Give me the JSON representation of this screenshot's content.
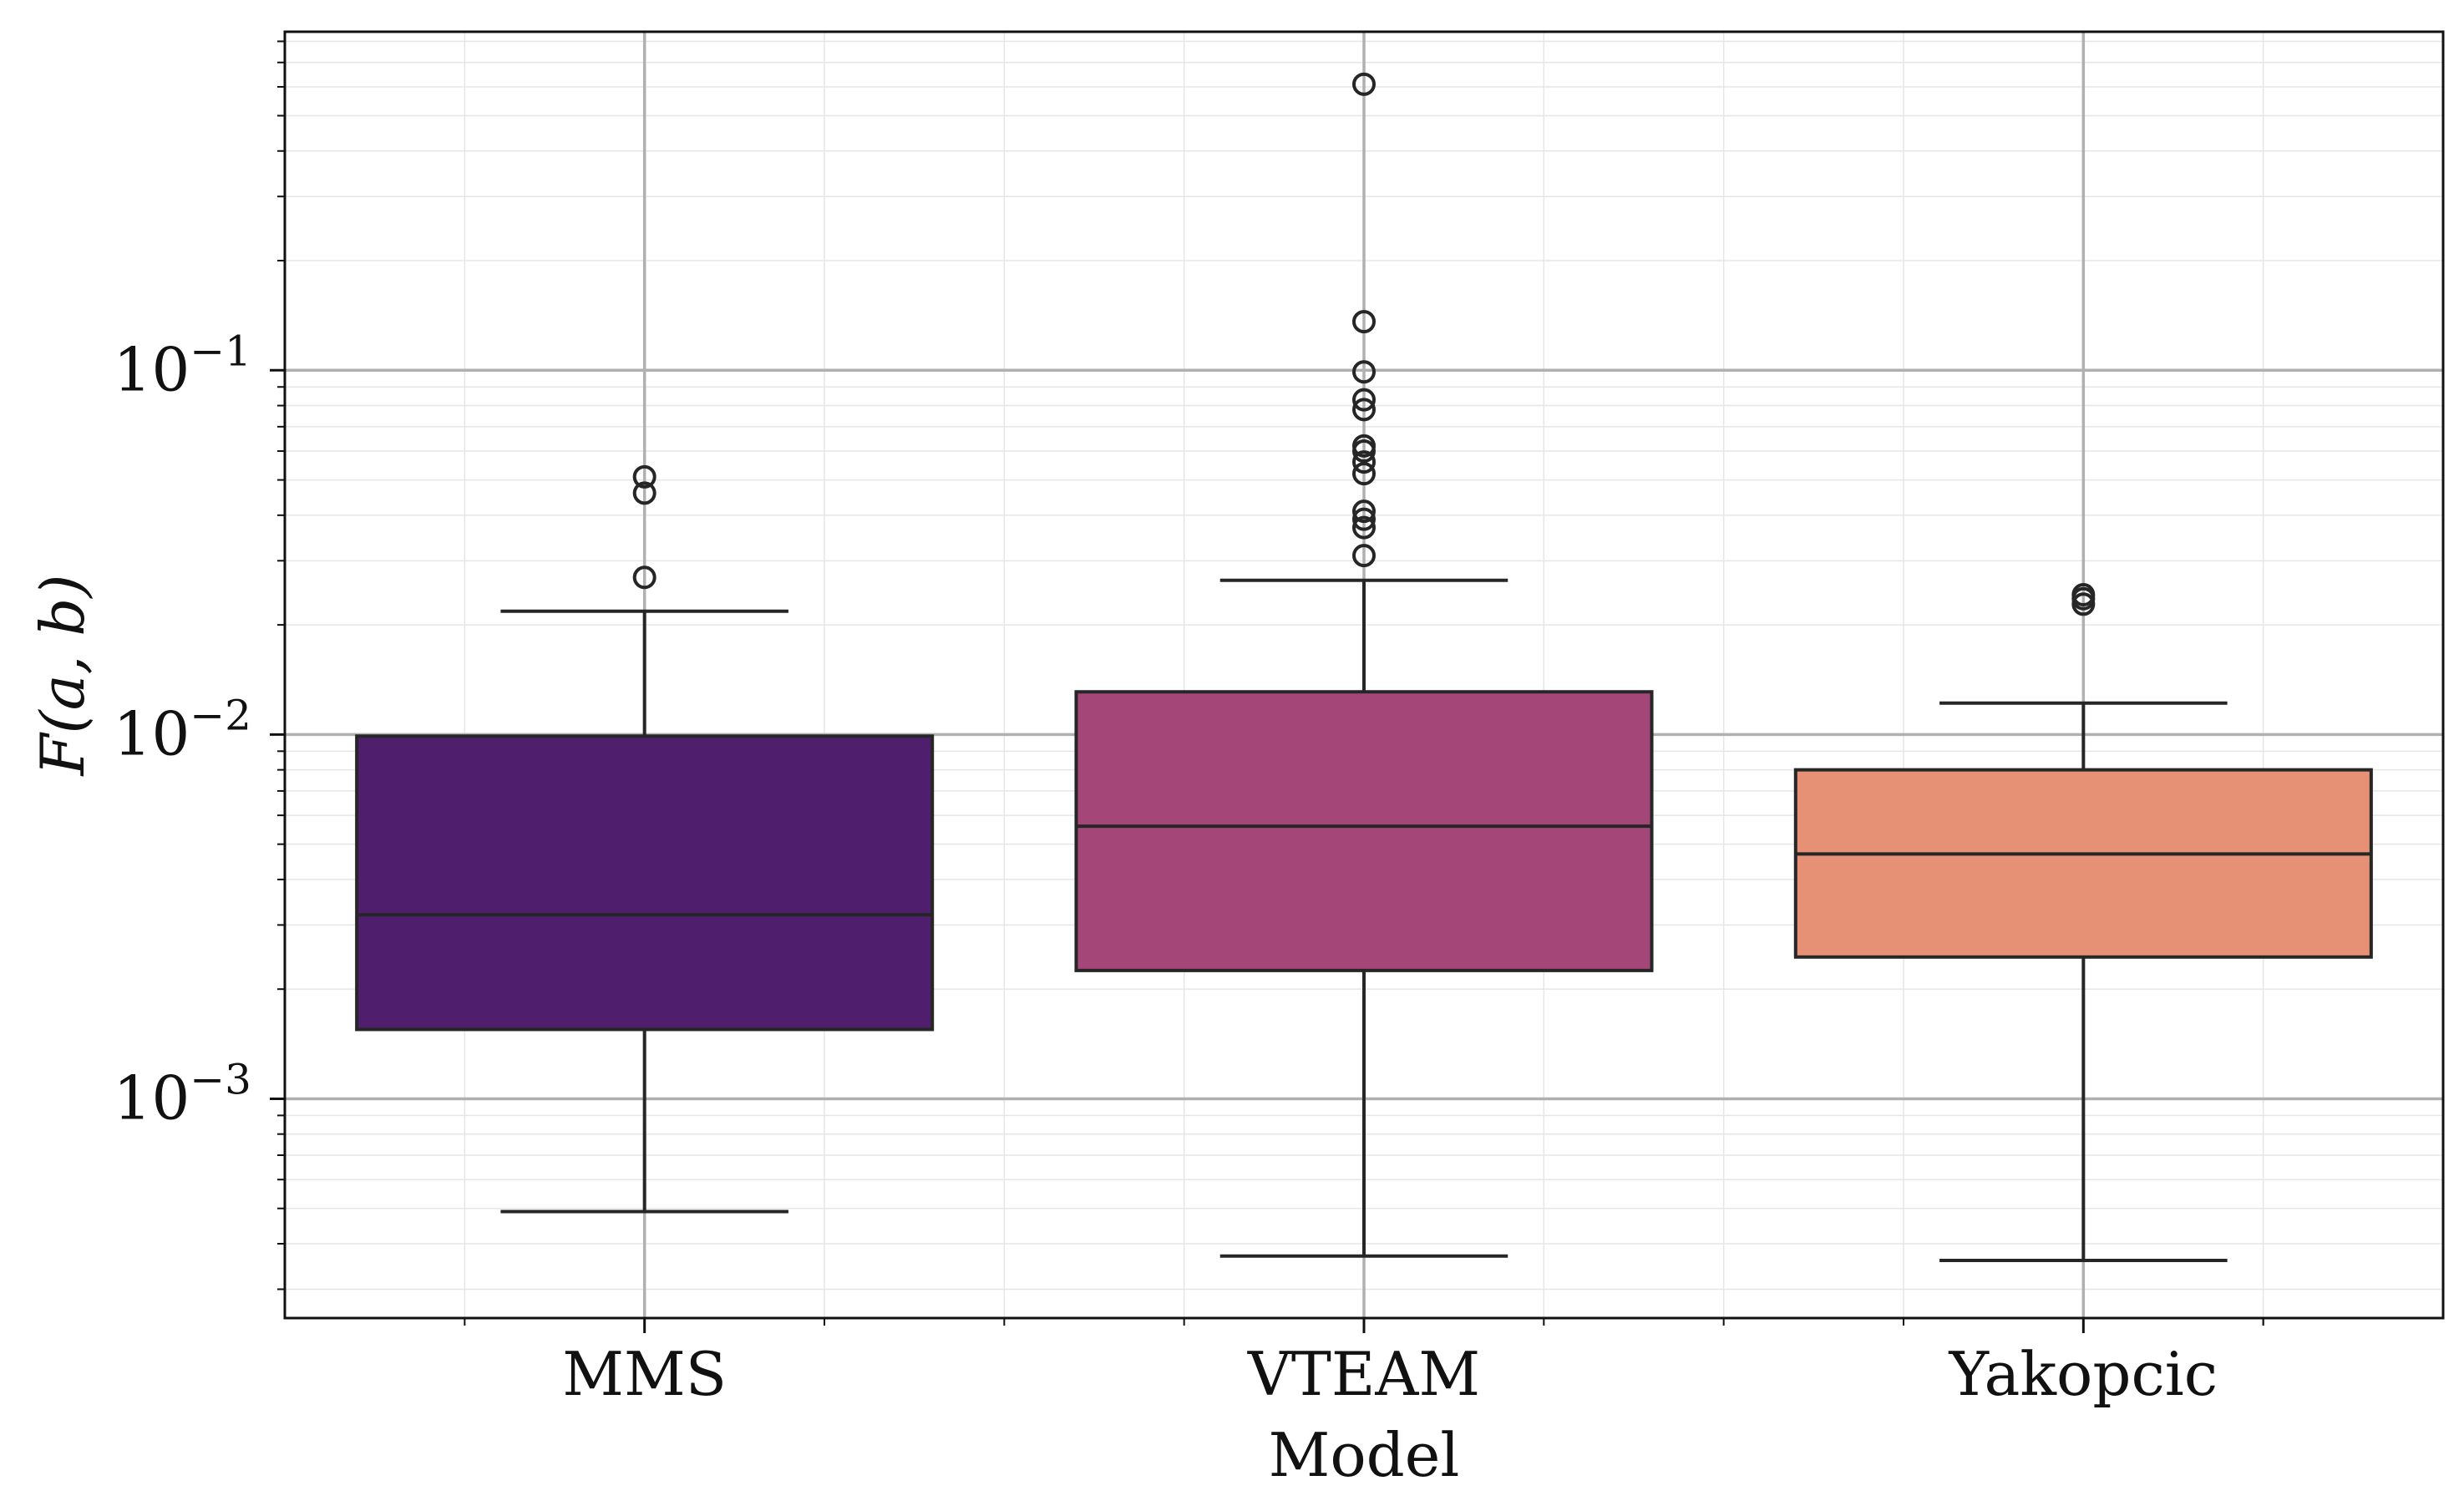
{
  "chart_data": {
    "type": "box",
    "title": "",
    "xlabel": "Model",
    "ylabel": "F(a, b)",
    "yscale": "log",
    "ylim": [
      0.00025,
      0.85
    ],
    "yticks": [
      {
        "value": 0.1,
        "base": "10",
        "exp": "−1"
      },
      {
        "value": 0.01,
        "base": "10",
        "exp": "−2"
      },
      {
        "value": 0.001,
        "base": "10",
        "exp": "−3"
      }
    ],
    "grid": "major and minor",
    "legend": "none",
    "categories": [
      "MMS",
      "VTEAM",
      "Yakopcic"
    ],
    "boxes": [
      {
        "category": "MMS",
        "whisker_low": 0.00049,
        "q1": 0.00155,
        "median": 0.0032,
        "q3": 0.0099,
        "whisker_high": 0.0218,
        "outliers": [
          0.027,
          0.046,
          0.051
        ],
        "color": "#4f1f6d"
      },
      {
        "category": "VTEAM",
        "whisker_low": 0.00037,
        "q1": 0.00225,
        "median": 0.0056,
        "q3": 0.0131,
        "whisker_high": 0.0265,
        "outliers": [
          0.031,
          0.037,
          0.039,
          0.041,
          0.052,
          0.056,
          0.06,
          0.062,
          0.078,
          0.083,
          0.099,
          0.136,
          0.61
        ],
        "color": "#a44677"
      },
      {
        "category": "Yakopcic",
        "whisker_low": 0.00036,
        "q1": 0.00245,
        "median": 0.0047,
        "q3": 0.008,
        "whisker_high": 0.0122,
        "outliers": [
          0.0228,
          0.0236,
          0.0242
        ],
        "color": "#e69175"
      }
    ]
  }
}
